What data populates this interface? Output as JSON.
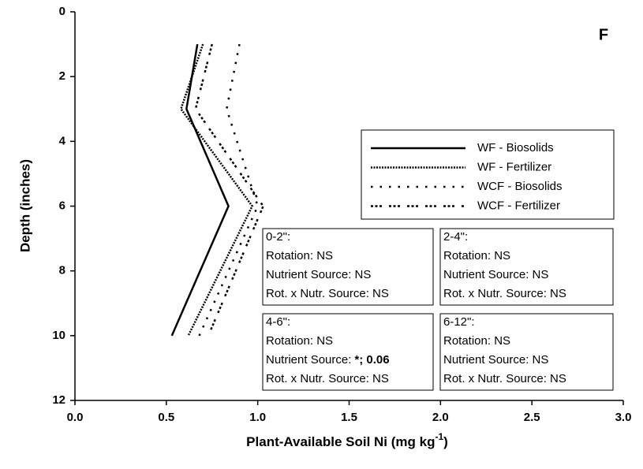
{
  "chart_data": {
    "type": "line",
    "orientation": "horizontal",
    "panel_label": "F",
    "xlabel": "Plant-Available Soil Ni (mg kg",
    "xlabel_sup": "-1",
    "xlabel_end": ")",
    "ylabel": "Depth (inches)",
    "y": [
      1,
      3,
      6,
      10
    ],
    "series": [
      {
        "name": "WF - Biosolids",
        "color": "#000000",
        "dash": "none",
        "values": [
          0.67,
          0.61,
          0.84,
          0.53
        ]
      },
      {
        "name": "WF - Fertilizer",
        "color": "#000000",
        "dash": "2,1.5",
        "values": [
          0.7,
          0.58,
          0.97,
          0.62
        ]
      },
      {
        "name": "WCF - Biosolids",
        "color": "#000000",
        "dash": "2.5,9",
        "values": [
          0.9,
          0.83,
          1.0,
          0.68
        ]
      },
      {
        "name": "WCF - Fertilizer",
        "color": "#000000",
        "dash": "3,2.5,3,2.5,3,9",
        "values": [
          0.75,
          0.66,
          1.03,
          0.73
        ]
      }
    ],
    "xlim": [
      0,
      3
    ],
    "xticks": [
      {
        "value": 0,
        "label": "0.0"
      },
      {
        "value": 0.5,
        "label": "0.5"
      },
      {
        "value": 1,
        "label": "1.0"
      },
      {
        "value": 1.5,
        "label": "1.5"
      },
      {
        "value": 2,
        "label": "2.0"
      },
      {
        "value": 2.5,
        "label": "2.5"
      },
      {
        "value": 3,
        "label": "3.0"
      }
    ],
    "ylim": [
      0,
      12
    ],
    "yticks": [
      0,
      2,
      4,
      6,
      8,
      10,
      12
    ],
    "y_inverted": true,
    "grid": false,
    "legend": "upper right",
    "stats_boxes": [
      {
        "lines": [
          "0-2\":",
          "Rotation: NS",
          "Nutrient Source: NS",
          "Rot. x Nutr. Source: NS"
        ]
      },
      {
        "lines": [
          "2-4\":",
          "Rotation: NS",
          "Nutrient Source: NS",
          "Rot. x Nutr. Source: NS"
        ]
      },
      {
        "lines": [
          "4-6\":",
          "Rotation: NS",
          "Nutrient Source:",
          "Rot. x Nutr. Source: NS"
        ],
        "emphasis": "*; 0.06"
      },
      {
        "lines": [
          "6-12\":",
          "Rotation: NS",
          "Nutrient Source: NS",
          "Rot. x Nutr. Source: NS"
        ]
      }
    ]
  }
}
